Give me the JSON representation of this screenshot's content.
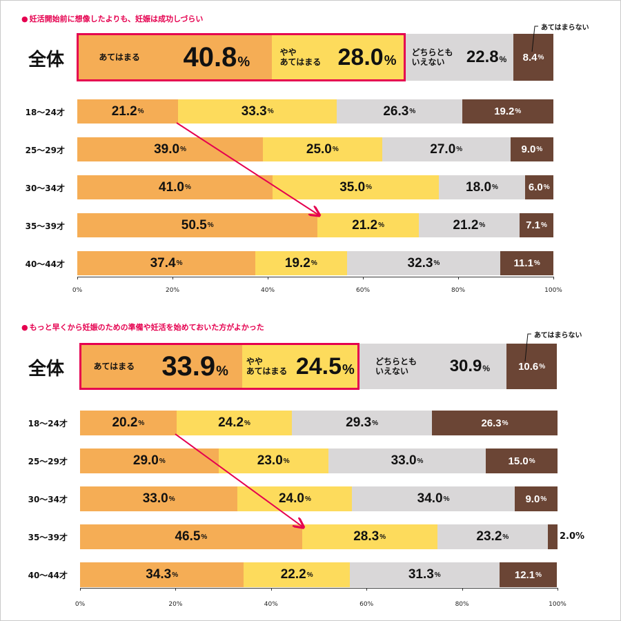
{
  "colors": {
    "agree": "#f5ad55",
    "somewhat": "#fddb5c",
    "neutral": "#d9d7d8",
    "disagree": "#6b4535",
    "accent": "#e5004f"
  },
  "legend": {
    "agree": "あてはまる",
    "somewhat_l1": "やや",
    "somewhat_l2": "あてはまる",
    "neutral_l1": "どちらとも",
    "neutral_l2": "いえない",
    "disagree": "あてはまらない"
  },
  "pct_sign": "%",
  "chart_data": [
    {
      "type": "bar",
      "stacked": true,
      "orientation": "horizontal",
      "title": "妊活開始前に想像したよりも、妊娠は成功しづらい",
      "total_label": "全体",
      "total": [
        40.8,
        28.0,
        22.8,
        8.4
      ],
      "total_text": [
        "40.8",
        "28.0",
        "22.8",
        "8.4"
      ],
      "categories": [
        "18〜24才",
        "25〜29才",
        "30〜34才",
        "35〜39才",
        "40〜44才"
      ],
      "series": [
        {
          "name": "あてはまる",
          "values": [
            21.2,
            39.0,
            41.0,
            50.5,
            37.4
          ]
        },
        {
          "name": "ややあてはまる",
          "values": [
            33.3,
            25.0,
            35.0,
            21.2,
            19.2
          ]
        },
        {
          "name": "どちらともいえない",
          "values": [
            26.3,
            27.0,
            18.0,
            21.2,
            32.3
          ]
        },
        {
          "name": "あてはまらない",
          "values": [
            19.2,
            9.0,
            6.0,
            7.1,
            11.1
          ]
        }
      ],
      "series_text": [
        [
          "21.2",
          "39.0",
          "41.0",
          "50.5",
          "37.4"
        ],
        [
          "33.3",
          "25.0",
          "35.0",
          "21.2",
          "19.2"
        ],
        [
          "26.3",
          "27.0",
          "18.0",
          "21.2",
          "32.3"
        ],
        [
          "19.2",
          "9.0",
          "6.0",
          "7.1",
          "11.1"
        ]
      ],
      "xticks": [
        "0%",
        "20%",
        "40%",
        "60%",
        "80%",
        "100%"
      ],
      "xlim": [
        0,
        100
      ],
      "annotation": "arrow from 18〜24才 to 35〜39才 (あてはまる)"
    },
    {
      "type": "bar",
      "stacked": true,
      "orientation": "horizontal",
      "title": "もっと早くから妊娠のための準備や妊活を始めておいた方がよかった",
      "total_label": "全体",
      "total": [
        33.9,
        24.5,
        30.9,
        10.6
      ],
      "total_text": [
        "33.9",
        "24.5",
        "30.9",
        "10.6"
      ],
      "categories": [
        "18〜24才",
        "25〜29才",
        "30〜34才",
        "35〜39才",
        "40〜44才"
      ],
      "series": [
        {
          "name": "あてはまる",
          "values": [
            20.2,
            29.0,
            33.0,
            46.5,
            34.3
          ]
        },
        {
          "name": "ややあてはまる",
          "values": [
            24.2,
            23.0,
            24.0,
            28.3,
            22.2
          ]
        },
        {
          "name": "どちらともいえない",
          "values": [
            29.3,
            33.0,
            34.0,
            23.2,
            31.3
          ]
        },
        {
          "name": "あてはまらない",
          "values": [
            26.3,
            15.0,
            9.0,
            2.0,
            12.1
          ]
        }
      ],
      "series_text": [
        [
          "20.2",
          "29.0",
          "33.0",
          "46.5",
          "34.3"
        ],
        [
          "24.2",
          "23.0",
          "24.0",
          "28.3",
          "22.2"
        ],
        [
          "29.3",
          "33.0",
          "34.0",
          "23.2",
          "31.3"
        ],
        [
          "26.3",
          "15.0",
          "9.0",
          "2.0",
          "12.1"
        ]
      ],
      "xticks": [
        "0%",
        "20%",
        "40%",
        "60%",
        "80%",
        "100%"
      ],
      "xlim": [
        0,
        100
      ],
      "annotation": "arrow from 18〜24才 to 35〜39才 (あてはまる)"
    }
  ]
}
